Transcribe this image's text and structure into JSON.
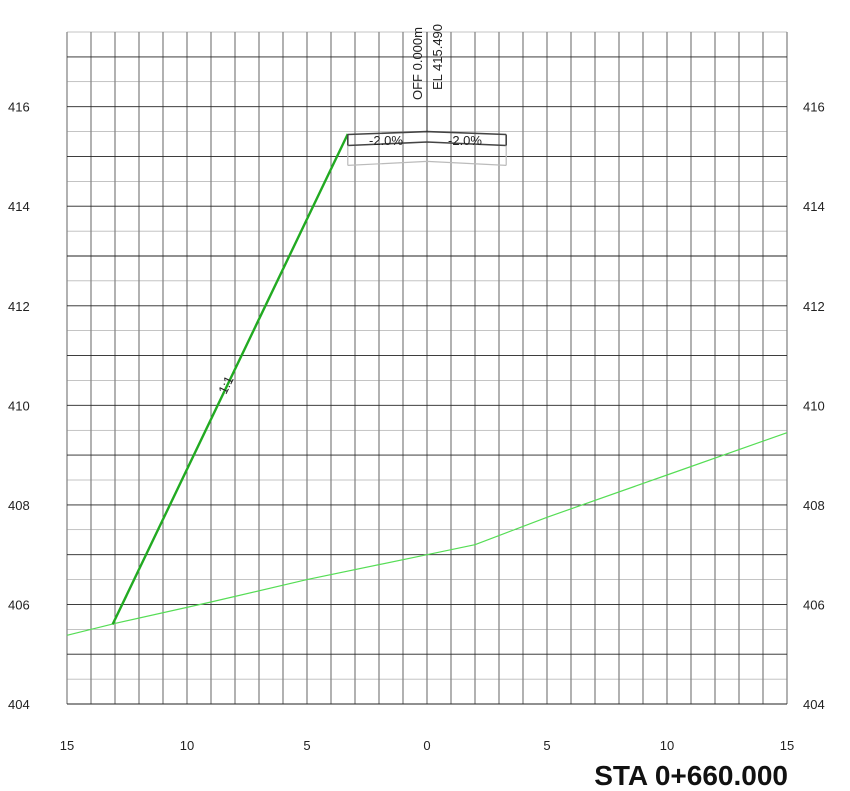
{
  "chart_data": {
    "type": "line",
    "title": "",
    "station_label": "STA 0+660.000",
    "xlim": [
      -15,
      15
    ],
    "ylim": [
      404,
      417.5
    ],
    "x_ticks": [
      {
        "value": -15,
        "label": "15"
      },
      {
        "value": -10,
        "label": "10"
      },
      {
        "value": -5,
        "label": "5"
      },
      {
        "value": 0,
        "label": "0"
      },
      {
        "value": 5,
        "label": "5"
      },
      {
        "value": 10,
        "label": "10"
      },
      {
        "value": 15,
        "label": "15"
      }
    ],
    "y_ticks": [
      {
        "value": 404,
        "label": "404"
      },
      {
        "value": 406,
        "label": "406"
      },
      {
        "value": 408,
        "label": "408"
      },
      {
        "value": 410,
        "label": "410"
      },
      {
        "value": 412,
        "label": "412"
      },
      {
        "value": 414,
        "label": "414"
      },
      {
        "value": 416,
        "label": "416"
      }
    ],
    "grid": true,
    "centerline_offset": "OFF 0.000m",
    "centerline_elevation": "EL 415.490",
    "annotations": {
      "left_cross_slope": "-2.0%",
      "right_cross_slope": "-2.0%",
      "side_slope": "1:1"
    },
    "colors": {
      "ground": "#55dd55",
      "side_slope": "#22aa22",
      "pavement": "#444444",
      "subbase": "#bbbbbb",
      "grid": "#222222"
    },
    "series": [
      {
        "key": "ground",
        "x": [
          -15,
          -13,
          -9,
          -5,
          0,
          2,
          5,
          10,
          15
        ],
        "y": [
          405.38,
          405.62,
          406.05,
          406.5,
          407.0,
          407.2,
          407.75,
          408.6,
          409.45
        ]
      },
      {
        "key": "side_slope",
        "x": [
          -13.1,
          -3.3
        ],
        "y": [
          405.6,
          415.45
        ]
      },
      {
        "key": "pavement_top",
        "x": [
          -3.3,
          0,
          3.3
        ],
        "y": [
          415.44,
          415.5,
          415.44
        ]
      },
      {
        "key": "pavement_bottom",
        "x": [
          -3.3,
          0,
          3.3
        ],
        "y": [
          415.22,
          415.29,
          415.22
        ]
      },
      {
        "key": "subbase",
        "x": [
          -3.3,
          0,
          3.3
        ],
        "y": [
          414.82,
          414.9,
          414.82
        ]
      }
    ]
  }
}
